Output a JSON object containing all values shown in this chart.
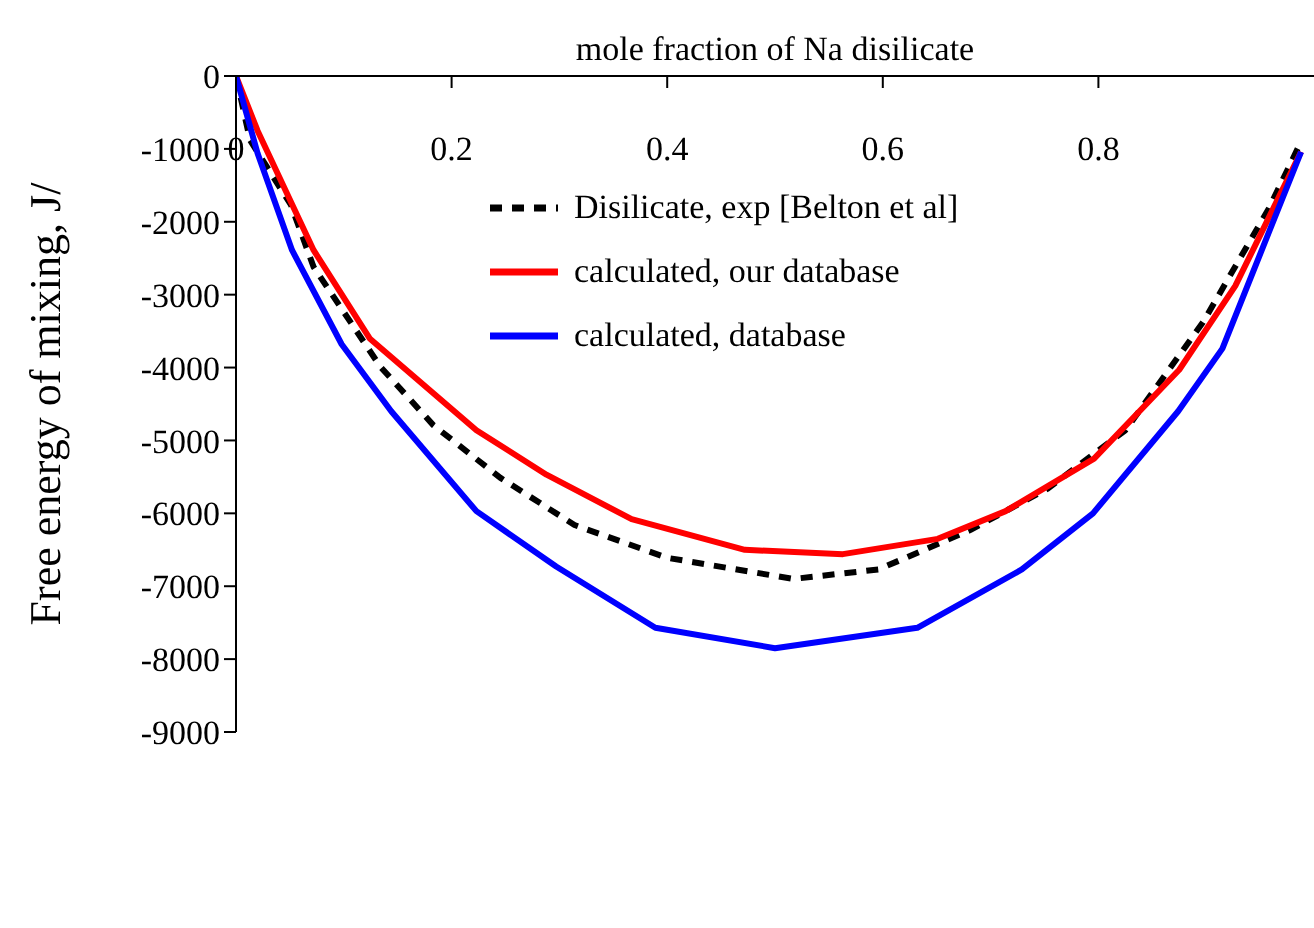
{
  "chart_data": {
    "type": "line",
    "xlabel": "mole fraction of Na disilicate",
    "ylabel": "Free energy of mixing, J/",
    "xlim": [
      0,
      1
    ],
    "xticks": [
      0,
      0.2,
      0.4,
      0.6,
      0.8
    ],
    "ylim": [
      -9000,
      0
    ],
    "yticks": [
      0,
      -1000,
      -2000,
      -3000,
      -4000,
      -5000,
      -6000,
      -7000,
      -8000,
      -9000
    ],
    "legend": "top",
    "marker": "none",
    "series": [
      {
        "name": "Disilicate, exp [Belton et al]",
        "color": "#000000",
        "line_style": "dashed",
        "x": [
          0,
          0.013,
          0.051,
          0.072,
          0.134,
          0.183,
          0.245,
          0.314,
          0.4,
          0.517,
          0.596,
          0.681,
          0.753,
          0.825,
          0.897,
          0.958,
          0.988
        ],
        "values": [
          0,
          -880,
          -1770,
          -2620,
          -3990,
          -4790,
          -5510,
          -6160,
          -6610,
          -6900,
          -6770,
          -6230,
          -5660,
          -4860,
          -3380,
          -1820,
          -900
        ]
      },
      {
        "name": "calculated, our database",
        "color": "#ff0000",
        "line_style": "solid",
        "x": [
          0,
          0.02,
          0.072,
          0.124,
          0.223,
          0.288,
          0.367,
          0.472,
          0.563,
          0.651,
          0.714,
          0.796,
          0.875,
          0.927,
          0.988
        ],
        "values": [
          0,
          -750,
          -2390,
          -3600,
          -4860,
          -5470,
          -6080,
          -6500,
          -6560,
          -6350,
          -5970,
          -5250,
          -4030,
          -2880,
          -1040
        ]
      },
      {
        "name": "calculated, database",
        "color": "#0000ff",
        "line_style": "solid",
        "x": [
          0,
          0.02,
          0.052,
          0.098,
          0.144,
          0.223,
          0.297,
          0.389,
          0.5,
          0.632,
          0.729,
          0.795,
          0.874,
          0.915,
          0.988
        ],
        "values": [
          0,
          -1060,
          -2390,
          -3680,
          -4600,
          -5970,
          -6730,
          -7570,
          -7850,
          -7570,
          -6770,
          -6000,
          -4600,
          -3740,
          -1040
        ]
      }
    ]
  }
}
